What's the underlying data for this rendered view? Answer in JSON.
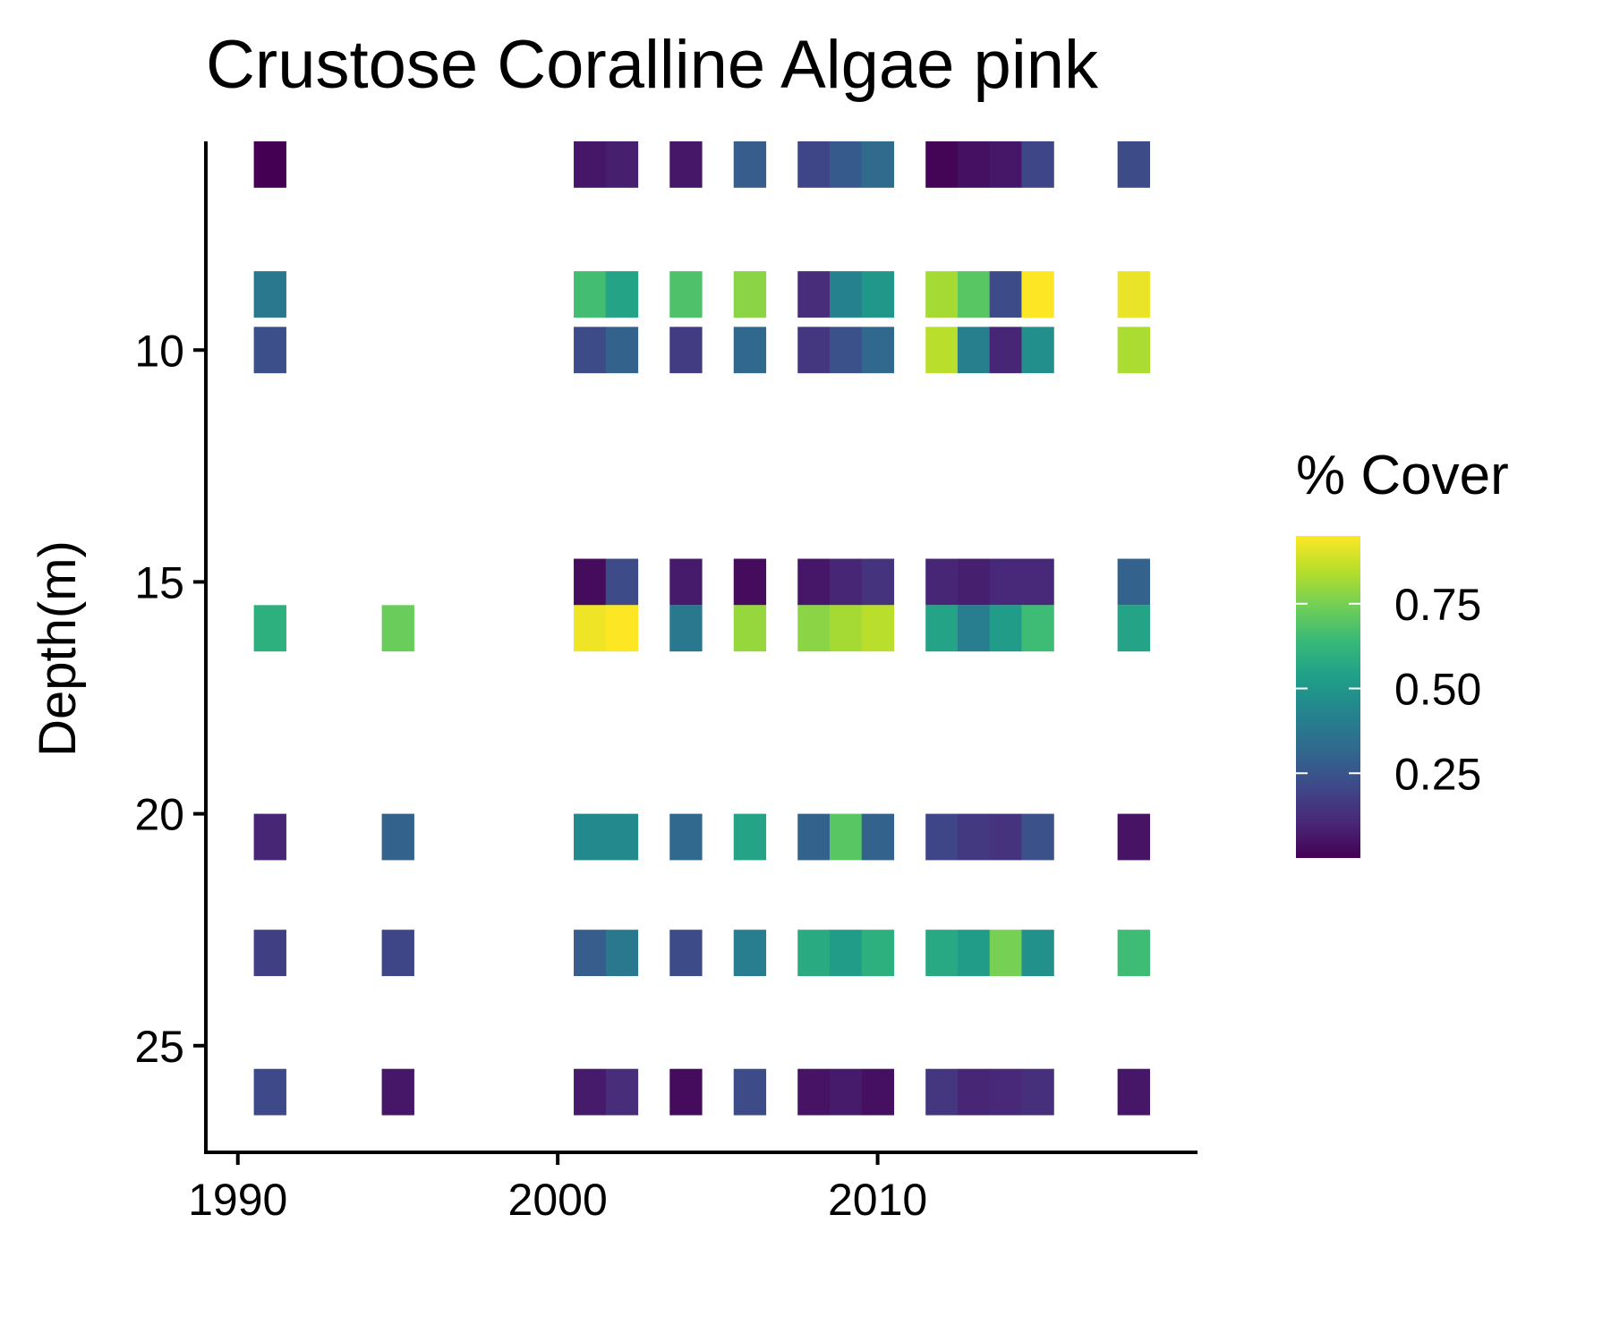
{
  "chart_data": {
    "type": "heatmap",
    "title": "Crustose Coralline Algae pink",
    "xlabel": "",
    "ylabel": "Depth(m)",
    "xlim": [
      1989,
      2020
    ],
    "ylim": [
      27.3,
      5.5
    ],
    "y_reversed": true,
    "x_ticks": [
      1990,
      2000,
      2010
    ],
    "y_ticks": [
      10,
      15,
      20,
      25
    ],
    "x_tick_labels": [
      "1990",
      "2000",
      "2010"
    ],
    "y_tick_labels": [
      "10",
      "15",
      "20",
      "25"
    ],
    "legend": {
      "title": "% Cover",
      "position": "right",
      "breaks": [
        0.25,
        0.5,
        0.75
      ],
      "break_labels": [
        "0.25",
        "0.50",
        "0.75"
      ],
      "min": 0.0,
      "max": 0.95,
      "palette": "viridis"
    },
    "columns_x": [
      1991,
      1995,
      2001,
      2002,
      2004,
      2006,
      2008,
      2009,
      2010,
      2012,
      2013,
      2014,
      2015,
      2018
    ],
    "depths": [
      {
        "depth": 6,
        "values": [
          0.0,
          null,
          0.06,
          0.08,
          0.06,
          0.28,
          0.2,
          0.27,
          0.33,
          0.01,
          0.04,
          0.06,
          0.2,
          0.22
        ]
      },
      {
        "depth": 8.8,
        "values": [
          0.38,
          null,
          0.66,
          0.55,
          0.68,
          0.78,
          0.12,
          0.42,
          0.5,
          0.82,
          0.7,
          0.22,
          0.95,
          0.92
        ]
      },
      {
        "depth": 10,
        "values": [
          0.23,
          null,
          0.22,
          0.3,
          0.17,
          0.32,
          0.15,
          0.24,
          0.32,
          0.85,
          0.41,
          0.1,
          0.47,
          0.83
        ]
      },
      {
        "depth": 15,
        "values": [
          null,
          null,
          0.03,
          0.22,
          0.07,
          0.03,
          0.06,
          0.1,
          0.14,
          0.1,
          0.08,
          0.11,
          0.11,
          0.3
        ]
      },
      {
        "depth": 16,
        "values": [
          0.6,
          0.73,
          0.93,
          0.95,
          0.38,
          0.8,
          0.78,
          0.82,
          0.85,
          0.55,
          0.4,
          0.52,
          0.65,
          0.55
        ]
      },
      {
        "depth": 20.5,
        "values": [
          0.1,
          0.3,
          0.45,
          0.45,
          0.32,
          0.55,
          0.3,
          0.7,
          0.3,
          0.2,
          0.16,
          0.14,
          0.24,
          0.05
        ]
      },
      {
        "depth": 23,
        "values": [
          0.18,
          0.2,
          0.28,
          0.38,
          0.22,
          0.4,
          0.58,
          0.52,
          0.6,
          0.57,
          0.52,
          0.75,
          0.48,
          0.65
        ]
      },
      {
        "depth": 26,
        "values": [
          0.21,
          0.06,
          0.07,
          0.12,
          0.03,
          0.22,
          0.05,
          0.07,
          0.04,
          0.15,
          0.1,
          0.11,
          0.13,
          0.06
        ]
      }
    ]
  },
  "colors": {
    "viridis_stops": [
      "#440154",
      "#482878",
      "#3e4989",
      "#31688e",
      "#26828e",
      "#1f9e89",
      "#35b779",
      "#6ece58",
      "#b5de2b",
      "#fde725"
    ],
    "axis": "#000000",
    "background": "#ffffff"
  }
}
